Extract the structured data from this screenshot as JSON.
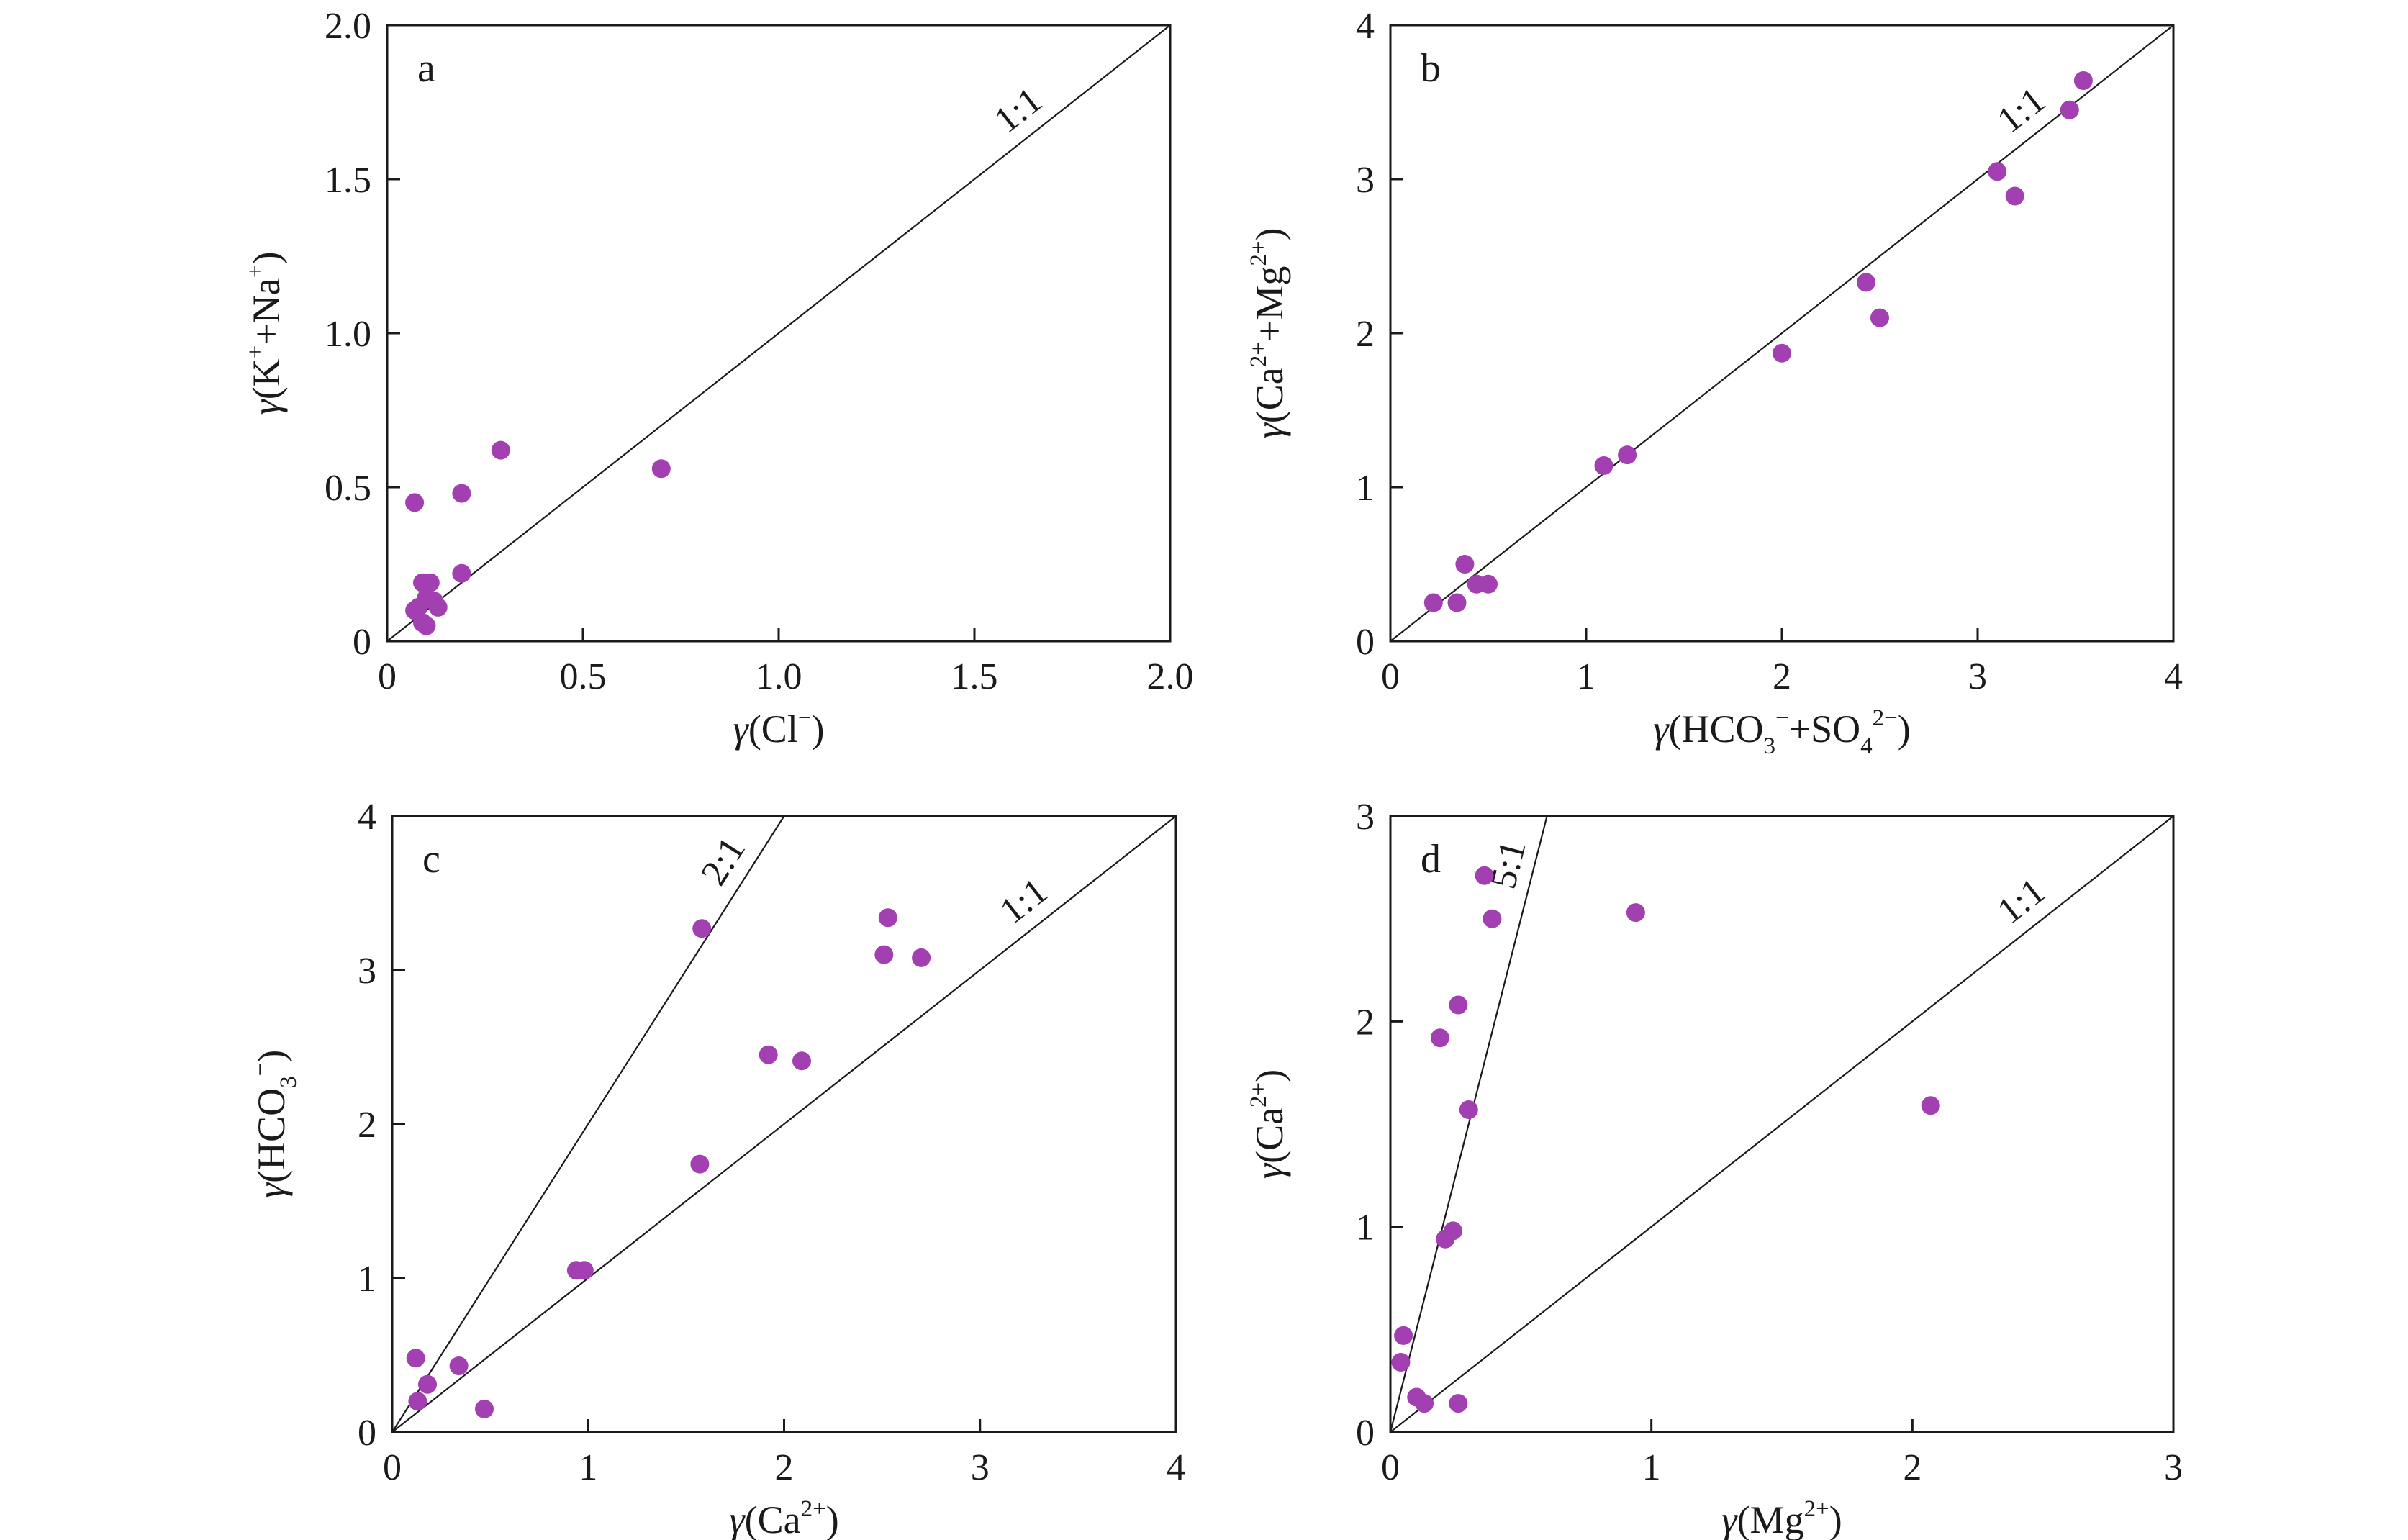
{
  "chart_data": [
    {
      "type": "scatter",
      "panel_label": "a",
      "xlabel": {
        "base": "γ(Cl",
        "sup": "−",
        "end": ")"
      },
      "ylabel": {
        "base": "γ(K",
        "sup": "+",
        "mid": "+Na",
        "sup2": "+",
        "end": ")"
      },
      "xlim": [
        0,
        2.0
      ],
      "ylim": [
        0,
        2.0
      ],
      "xticks": [
        "0",
        "0.5",
        "1.0",
        "1.5",
        "2.0"
      ],
      "xtick_values": [
        0,
        0.5,
        1.0,
        1.5,
        2.0
      ],
      "yticks": [
        "0",
        "0.5",
        "1.0",
        "1.5",
        "2.0"
      ],
      "ytick_values": [
        0,
        0.5,
        1.0,
        1.5,
        2.0
      ],
      "ref_lines": [
        {
          "label": "1:1",
          "slope": 1
        }
      ],
      "points": [
        [
          0.07,
          0.45
        ],
        [
          0.19,
          0.48
        ],
        [
          0.29,
          0.62
        ],
        [
          0.7,
          0.56
        ],
        [
          0.19,
          0.22
        ],
        [
          0.09,
          0.19
        ],
        [
          0.11,
          0.19
        ],
        [
          0.1,
          0.14
        ],
        [
          0.12,
          0.13
        ],
        [
          0.13,
          0.11
        ],
        [
          0.08,
          0.11
        ],
        [
          0.07,
          0.1
        ],
        [
          0.09,
          0.06
        ],
        [
          0.1,
          0.05
        ]
      ],
      "grid": false,
      "color": "#a23fb1"
    },
    {
      "type": "scatter",
      "panel_label": "b",
      "xlabel": {
        "base": "γ(HCO",
        "sub": "3",
        "sup": "−",
        "mid": "+SO",
        "sub2": "4",
        "sup2": "2−",
        "end": ")"
      },
      "ylabel": {
        "base": "γ(Ca",
        "sup": "2+",
        "mid": "+Mg",
        "sup2": "2+",
        "end": ")"
      },
      "xlim": [
        0,
        4
      ],
      "ylim": [
        0,
        4
      ],
      "xticks": [
        "0",
        "1",
        "2",
        "3",
        "4"
      ],
      "xtick_values": [
        0,
        1,
        2,
        3,
        4
      ],
      "yticks": [
        "0",
        "1",
        "2",
        "3",
        "4"
      ],
      "ytick_values": [
        0,
        1,
        2,
        3,
        4
      ],
      "ref_lines": [
        {
          "label": "1:1",
          "slope": 1
        }
      ],
      "points": [
        [
          0.22,
          0.25
        ],
        [
          0.34,
          0.25
        ],
        [
          0.38,
          0.5
        ],
        [
          0.44,
          0.37
        ],
        [
          0.5,
          0.37
        ],
        [
          1.09,
          1.14
        ],
        [
          1.21,
          1.21
        ],
        [
          2.0,
          1.87
        ],
        [
          2.43,
          2.33
        ],
        [
          2.5,
          2.1
        ],
        [
          3.1,
          3.05
        ],
        [
          3.19,
          2.89
        ],
        [
          3.47,
          3.45
        ],
        [
          3.54,
          3.64
        ]
      ],
      "grid": false,
      "color": "#a23fb1"
    },
    {
      "type": "scatter",
      "panel_label": "c",
      "xlabel": {
        "base": "γ(Ca",
        "sup": "2+",
        "end": ")"
      },
      "ylabel": {
        "base": "γ(HCO",
        "sub": "3",
        "sup": "−",
        "end": ")"
      },
      "xlim": [
        0,
        4
      ],
      "ylim": [
        0,
        4
      ],
      "xticks": [
        "0",
        "1",
        "2",
        "3",
        "4"
      ],
      "xtick_values": [
        0,
        1,
        2,
        3,
        4
      ],
      "yticks": [
        "0",
        "1",
        "2",
        "3",
        "4"
      ],
      "ytick_values": [
        0,
        1,
        2,
        3,
        4
      ],
      "ref_lines": [
        {
          "label": "2:1",
          "slope": 2
        },
        {
          "label": "1:1",
          "slope": 1
        }
      ],
      "points": [
        [
          0.12,
          0.48
        ],
        [
          0.13,
          0.2
        ],
        [
          0.18,
          0.31
        ],
        [
          0.34,
          0.43
        ],
        [
          0.47,
          0.15
        ],
        [
          0.94,
          1.05
        ],
        [
          0.98,
          1.05
        ],
        [
          1.57,
          1.74
        ],
        [
          1.58,
          3.27
        ],
        [
          1.92,
          2.45
        ],
        [
          2.09,
          2.41
        ],
        [
          2.51,
          3.1
        ],
        [
          2.53,
          3.34
        ],
        [
          2.7,
          3.08
        ]
      ],
      "grid": false,
      "color": "#a23fb1"
    },
    {
      "type": "scatter",
      "panel_label": "d",
      "xlabel": {
        "base": "γ(Mg",
        "sup": "2+",
        "end": ")"
      },
      "ylabel": {
        "base": "γ(Ca",
        "sup": "2+",
        "end": ")"
      },
      "xlim": [
        0,
        3
      ],
      "ylim": [
        0,
        3
      ],
      "xticks": [
        "0",
        "1",
        "2",
        "3"
      ],
      "xtick_values": [
        0,
        1,
        2,
        3
      ],
      "yticks": [
        "0",
        "1",
        "2",
        "3"
      ],
      "ytick_values": [
        0,
        1,
        2,
        3
      ],
      "ref_lines": [
        {
          "label": "5:1",
          "slope": 5
        },
        {
          "label": "1:1",
          "slope": 1
        }
      ],
      "points": [
        [
          0.05,
          0.47
        ],
        [
          0.04,
          0.34
        ],
        [
          0.1,
          0.17
        ],
        [
          0.13,
          0.14
        ],
        [
          0.26,
          0.14
        ],
        [
          0.21,
          0.94
        ],
        [
          0.24,
          0.98
        ],
        [
          0.3,
          1.57
        ],
        [
          0.19,
          1.92
        ],
        [
          0.26,
          2.08
        ],
        [
          0.36,
          2.71
        ],
        [
          0.39,
          2.5
        ],
        [
          0.94,
          2.53
        ],
        [
          2.07,
          1.59
        ]
      ],
      "grid": false,
      "color": "#a23fb1"
    }
  ]
}
